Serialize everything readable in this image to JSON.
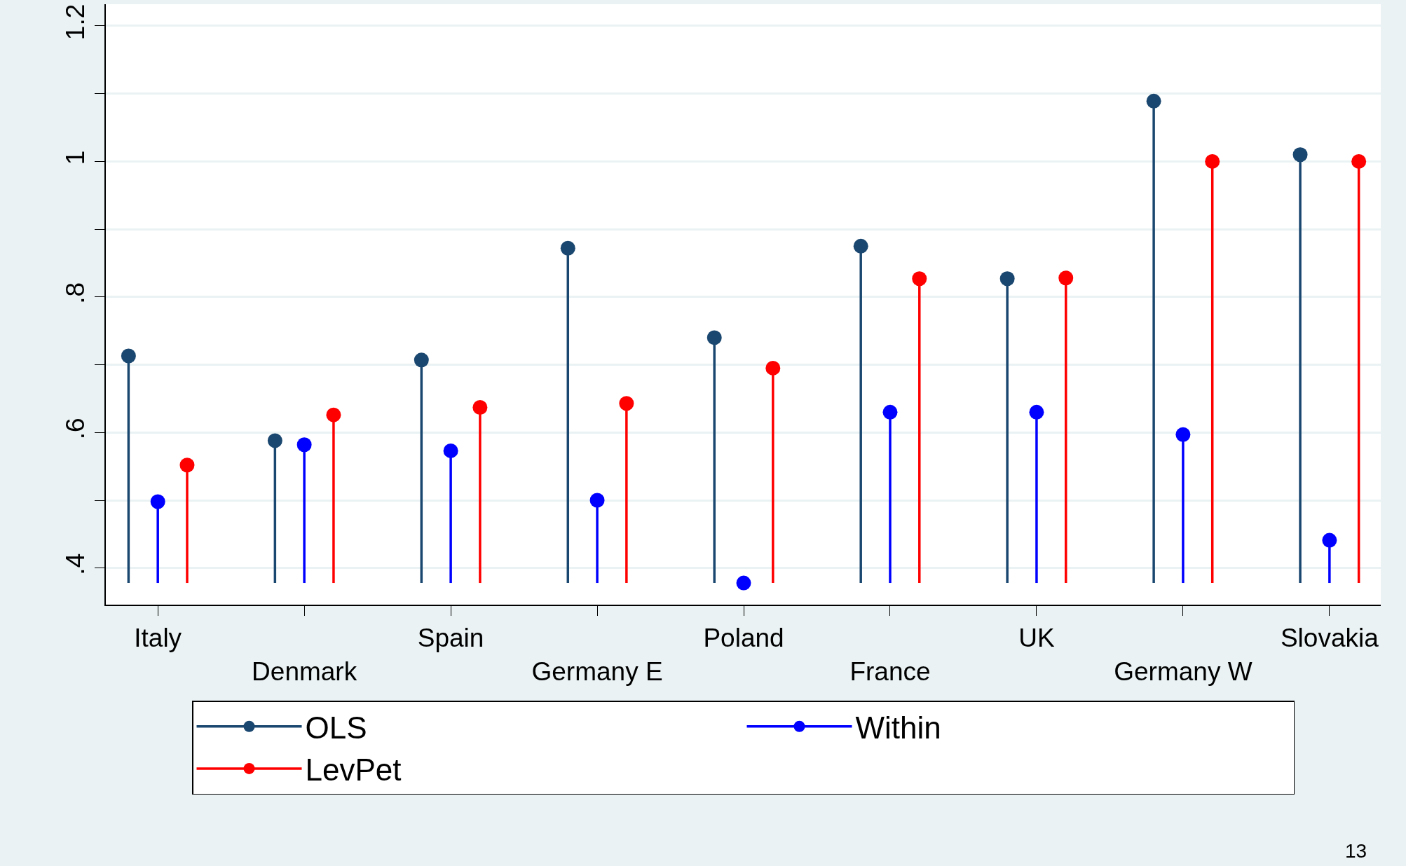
{
  "chart_data": {
    "type": "lollipop",
    "categories": [
      "Italy",
      "Denmark",
      "Spain",
      "Germany E",
      "Poland",
      "France",
      "UK",
      "Germany W",
      "Slovakia"
    ],
    "series": [
      {
        "name": "OLS",
        "color": "#1a476f",
        "values": [
          0.713,
          0.588,
          0.707,
          0.872,
          0.74,
          0.875,
          0.827,
          1.089,
          1.01
        ],
        "errors": [
          [
            0.378,
            0.713
          ],
          [
            0.378,
            0.588
          ],
          [
            0.378,
            0.707
          ],
          [
            0.378,
            0.872
          ],
          [
            0.378,
            0.74
          ],
          [
            0.378,
            0.875
          ],
          [
            0.378,
            0.827
          ],
          [
            0.378,
            1.089
          ],
          [
            0.378,
            1.01
          ]
        ]
      },
      {
        "name": "Within",
        "color": "#0000ff",
        "values": [
          0.498,
          0.582,
          0.573,
          0.5,
          0.378,
          0.63,
          0.63,
          0.597,
          0.441
        ],
        "errors": [
          [
            0.378,
            0.498
          ],
          [
            0.378,
            0.582
          ],
          [
            0.378,
            0.573
          ],
          [
            0.378,
            0.5
          ],
          [
            0.378,
            0.378
          ],
          [
            0.378,
            0.63
          ],
          [
            0.378,
            0.63
          ],
          [
            0.378,
            0.597
          ],
          [
            0.378,
            0.441
          ]
        ]
      },
      {
        "name": "LevPet",
        "color": "#ff0000",
        "values": [
          0.552,
          0.626,
          0.637,
          0.643,
          0.695,
          0.827,
          0.828,
          1.0,
          1.0
        ],
        "errors": [
          [
            0.378,
            0.552
          ],
          [
            0.378,
            0.626
          ],
          [
            0.378,
            0.637
          ],
          [
            0.378,
            0.643
          ],
          [
            0.378,
            0.695
          ],
          [
            0.378,
            0.827
          ],
          [
            0.378,
            0.828
          ],
          [
            0.378,
            1.0
          ],
          [
            0.378,
            1.0
          ]
        ]
      }
    ],
    "ylim": [
      0.346,
      1.232
    ],
    "yticks": [
      {
        "value": 0.4,
        "label": ".4"
      },
      {
        "value": 0.5,
        "label": null
      },
      {
        "value": 0.6,
        "label": ".6"
      },
      {
        "value": 0.7,
        "label": null
      },
      {
        "value": 0.8,
        "label": ".8"
      },
      {
        "value": 0.9,
        "label": null
      },
      1,
      {
        "value": 1.1,
        "label": null
      },
      1.2
    ],
    "grid": "y",
    "legend": "bottom",
    "marker": "circle",
    "line_style": "solid",
    "annotations": [
      "13"
    ]
  }
}
